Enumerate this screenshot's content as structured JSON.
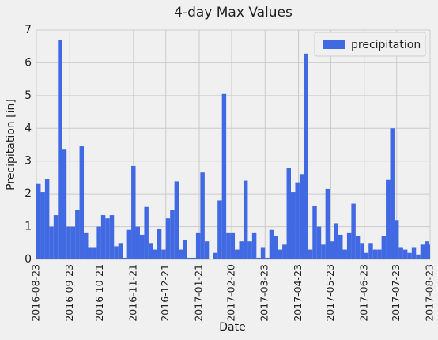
{
  "chart_data": {
    "type": "bar",
    "title": "4-day Max Values",
    "xlabel": "Date",
    "ylabel": "Precipitation [in]",
    "x": [
      "2016-08-23",
      "2016-08-27",
      "2016-08-31",
      "2016-09-04",
      "2016-09-08",
      "2016-09-12",
      "2016-09-16",
      "2016-09-20",
      "2016-09-24",
      "2016-09-28",
      "2016-10-02",
      "2016-10-06",
      "2016-10-10",
      "2016-10-14",
      "2016-10-18",
      "2016-10-22",
      "2016-10-26",
      "2016-10-30",
      "2016-11-03",
      "2016-11-07",
      "2016-11-11",
      "2016-11-15",
      "2016-11-19",
      "2016-11-23",
      "2016-11-27",
      "2016-12-01",
      "2016-12-05",
      "2016-12-09",
      "2016-12-13",
      "2016-12-17",
      "2016-12-21",
      "2016-12-25",
      "2016-12-29",
      "2017-01-02",
      "2017-01-06",
      "2017-01-10",
      "2017-01-14",
      "2017-01-18",
      "2017-01-22",
      "2017-01-26",
      "2017-01-30",
      "2017-02-03",
      "2017-02-07",
      "2017-02-11",
      "2017-02-15",
      "2017-02-19",
      "2017-02-23",
      "2017-02-27",
      "2017-03-03",
      "2017-03-07",
      "2017-03-11",
      "2017-03-15",
      "2017-03-19",
      "2017-03-23",
      "2017-03-27",
      "2017-03-31",
      "2017-04-04",
      "2017-04-08",
      "2017-04-12",
      "2017-04-16",
      "2017-04-20",
      "2017-04-24",
      "2017-04-28",
      "2017-05-02",
      "2017-05-06",
      "2017-05-10",
      "2017-05-14",
      "2017-05-18",
      "2017-05-22",
      "2017-05-26",
      "2017-05-30",
      "2017-06-03",
      "2017-06-07",
      "2017-06-11",
      "2017-06-15",
      "2017-06-19",
      "2017-06-23",
      "2017-06-27",
      "2017-07-01",
      "2017-07-05",
      "2017-07-09",
      "2017-07-13",
      "2017-07-17",
      "2017-07-21",
      "2017-07-25",
      "2017-07-29",
      "2017-08-02",
      "2017-08-06",
      "2017-08-10",
      "2017-08-14",
      "2017-08-18",
      "2017-08-22"
    ],
    "series": [
      {
        "name": "precipitation",
        "color": "#4169e1",
        "values": [
          2.3,
          2.05,
          2.45,
          1.0,
          1.35,
          6.7,
          3.35,
          1.0,
          1.0,
          1.5,
          3.45,
          0.8,
          0.35,
          0.35,
          1.0,
          1.35,
          1.25,
          1.35,
          0.4,
          0.5,
          0.05,
          0.9,
          2.85,
          1.0,
          0.75,
          1.6,
          0.5,
          0.3,
          0.92,
          0.3,
          1.25,
          1.5,
          2.38,
          0.3,
          0.6,
          0.05,
          0.05,
          0.8,
          2.65,
          0.55,
          0.02,
          0.2,
          1.8,
          5.05,
          0.8,
          0.8,
          0.3,
          0.55,
          2.4,
          0.55,
          0.8,
          0.05,
          0.35,
          0.05,
          0.9,
          0.7,
          0.3,
          0.45,
          2.8,
          2.05,
          2.35,
          2.6,
          6.28,
          0.3,
          1.62,
          1.0,
          0.45,
          2.15,
          0.55,
          1.1,
          0.75,
          0.3,
          0.8,
          1.7,
          0.7,
          0.5,
          0.2,
          0.5,
          0.3,
          0.3,
          0.7,
          2.42,
          4.0,
          1.2,
          0.35,
          0.3,
          0.2,
          0.35,
          0.15,
          0.45,
          0.55,
          0.45
        ]
      }
    ],
    "xlim": [
      "2016-08-23",
      "2017-08-23"
    ],
    "xticks": [
      "2016-08-23",
      "2016-09-23",
      "2016-10-21",
      "2016-11-21",
      "2016-12-21",
      "2017-01-21",
      "2017-02-20",
      "2017-03-23",
      "2017-04-23",
      "2017-05-23",
      "2017-06-23",
      "2017-07-23",
      "2017-08-23"
    ],
    "ylim": [
      0,
      7
    ],
    "yticks": [
      0,
      1,
      2,
      3,
      4,
      5,
      6,
      7
    ],
    "grid": true,
    "legend": "upper right"
  }
}
